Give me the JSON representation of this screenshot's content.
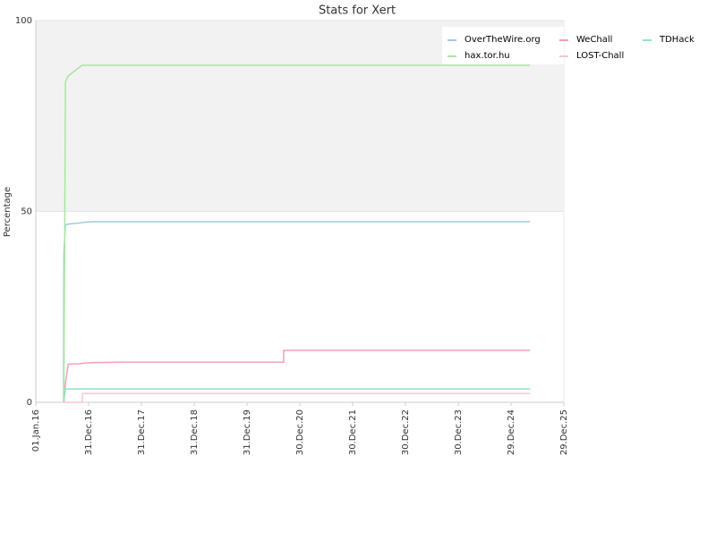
{
  "chart_data": {
    "type": "line",
    "title": "Stats for Xert",
    "y_label": "Percentage",
    "x": [
      "2016-07-11",
      "2016-07-13",
      "2016-07-24",
      "2016-08-12",
      "2016-11-05",
      "2016-11-17",
      "2016-11-18",
      "2016-12-07",
      "2017-02-07",
      "2017-07-11",
      "2020-09-09",
      "2020-09-10",
      "2025-05-10"
    ],
    "series": [
      {
        "name": "OverTheWire.org",
        "color": "#9ecae1",
        "values": [
          0,
          39,
          46.5,
          46.7,
          47,
          47.1,
          47.1,
          47.2,
          47.3,
          47.3,
          47.3,
          47.3,
          47.3
        ]
      },
      {
        "name": "WeChall",
        "color": "#f29fbd",
        "values": [
          0,
          0,
          5,
          10,
          10.1,
          10.2,
          10.2,
          10.3,
          10.4,
          10.5,
          10.5,
          13.6,
          13.6
        ]
      },
      {
        "name": "TDHack",
        "color": "#8ee3c8",
        "values": [
          0,
          0,
          3.5,
          3.5,
          3.5,
          3.5,
          3.5,
          3.5,
          3.5,
          3.5,
          3.5,
          3.5,
          3.5
        ]
      },
      {
        "name": "hax.tor.hu",
        "color": "#a8e6a0",
        "values": [
          0,
          0,
          84,
          85.5,
          88,
          88.3,
          88.3,
          88.3,
          88.3,
          88.3,
          88.3,
          88.3,
          88.3
        ]
      },
      {
        "name": "LOST-Chall",
        "color": "#f7c6d3",
        "values": [
          0,
          0,
          0,
          0,
          0,
          0,
          2.3,
          2.3,
          2.3,
          2.3,
          2.3,
          2.3,
          2.3
        ]
      }
    ],
    "xlim": [
      "2016-01-01",
      "2025-12-29"
    ],
    "xticks": [
      {
        "value": "2016-01-01",
        "label": "01.Jan.16"
      },
      {
        "value": "2016-12-31",
        "label": "31.Dec.16"
      },
      {
        "value": "2017-12-31",
        "label": "31.Dec.17"
      },
      {
        "value": "2018-12-31",
        "label": "31.Dec.18"
      },
      {
        "value": "2019-12-31",
        "label": "31.Dec.19"
      },
      {
        "value": "2020-12-30",
        "label": "30.Dec.20"
      },
      {
        "value": "2021-12-30",
        "label": "30.Dec.21"
      },
      {
        "value": "2022-12-30",
        "label": "30.Dec.22"
      },
      {
        "value": "2023-12-30",
        "label": "30.Dec.23"
      },
      {
        "value": "2024-12-29",
        "label": "29.Dec.24"
      },
      {
        "value": "2025-12-29",
        "label": "29.Dec.25"
      }
    ],
    "ylim": [
      0,
      100
    ],
    "yticks": [
      0,
      50,
      100
    ],
    "grid": true,
    "legend": "top-right"
  }
}
